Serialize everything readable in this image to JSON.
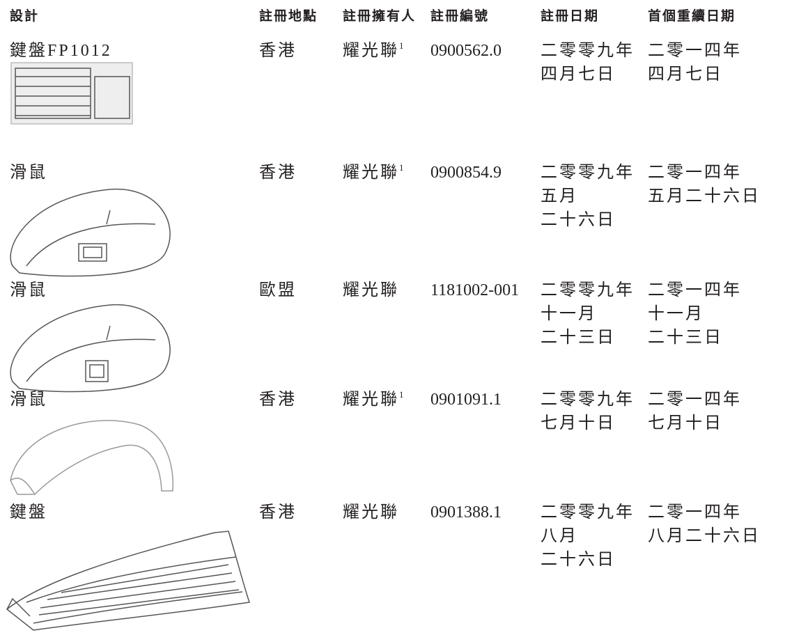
{
  "table": {
    "headers": [
      "設計",
      "註冊地點",
      "註冊擁有人",
      "註冊編號",
      "註冊日期",
      "首個重續日期"
    ],
    "rows": [
      {
        "design": "鍵盤FP1012",
        "location": "香港",
        "owner": "耀光聯",
        "owner_note": "1",
        "number": "0900562.0",
        "date": [
          "二零零九年",
          "四月七日"
        ],
        "renewal": [
          "二零一四年",
          "四月七日"
        ]
      },
      {
        "design": "滑鼠",
        "location": "香港",
        "owner": "耀光聯",
        "owner_note": "1",
        "number": "0900854.9",
        "date": [
          "二零零九年",
          "五月",
          "二十六日"
        ],
        "renewal": [
          "二零一四年",
          "五月二十六日"
        ]
      },
      {
        "design": "滑鼠",
        "location": "歐盟",
        "owner": "耀光聯",
        "number": "1181002-001",
        "date": [
          "二零零九年",
          "十一月",
          "二十三日"
        ],
        "renewal": [
          "二零一四年",
          "十一月",
          "二十三日"
        ]
      },
      {
        "design": "滑鼠",
        "location": "香港",
        "owner": "耀光聯",
        "owner_note": "1",
        "number": "0901091.1",
        "date": [
          "二零零九年",
          "七月十日"
        ],
        "renewal": [
          "二零一四年",
          "七月十日"
        ]
      },
      {
        "design": "鍵盤",
        "location": "香港",
        "owner": "耀光聯",
        "number": "0901388.1",
        "date": [
          "二零零九年",
          "八月",
          "二十六日"
        ],
        "renewal": [
          "二零一四年",
          "八月二十六日"
        ]
      }
    ]
  }
}
